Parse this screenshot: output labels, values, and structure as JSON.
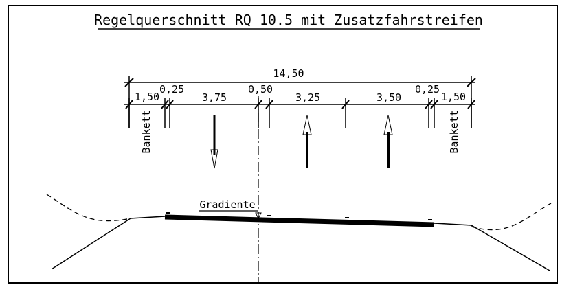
{
  "title": "Regelquerschnitt RQ 10.5 mit Zusatzfahrstreifen",
  "total_width": "14,50",
  "dimensions": [
    "1,50",
    "0,25",
    "3,75",
    "0,50",
    "3,25",
    "3,50",
    "0,25",
    "1,50"
  ],
  "shoulder_labels": [
    "Bankett",
    "Bankett"
  ],
  "grade_label": "Gradiente"
}
